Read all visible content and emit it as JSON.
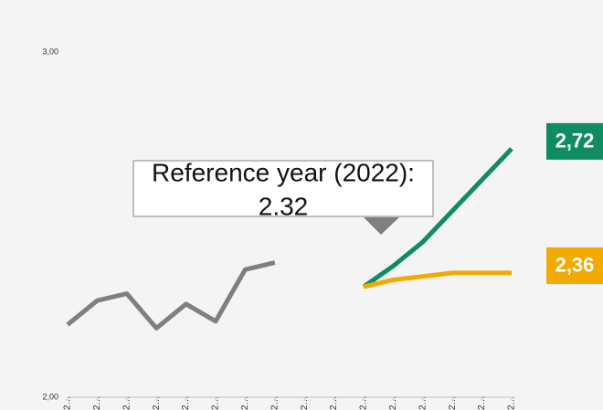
{
  "chart_data": {
    "type": "line",
    "categories": [
      "2…",
      "2…",
      "2…",
      "2…",
      "2…",
      "2…",
      "2…",
      "2…",
      "2…",
      "2…",
      "2…",
      "2…",
      "2…",
      "2…",
      "2…",
      "2…"
    ],
    "series": [
      {
        "color": "#7f7f7f",
        "values": [
          2.21,
          2.28,
          2.3,
          2.2,
          2.27,
          2.22,
          2.37,
          2.39,
          null,
          null,
          null,
          null,
          null,
          null,
          null,
          null
        ]
      },
      {
        "color": "#0f8c64",
        "values": [
          null,
          null,
          null,
          null,
          null,
          null,
          null,
          null,
          null,
          null,
          2.32,
          2.38,
          2.45,
          2.54,
          2.63,
          2.72
        ],
        "value_labels": [
          null,
          null,
          null,
          null,
          null,
          null,
          null,
          null,
          null,
          null,
          null,
          null,
          null,
          null,
          null,
          "2,72"
        ]
      },
      {
        "color": "#f2a900",
        "values": [
          null,
          null,
          null,
          null,
          null,
          null,
          null,
          null,
          null,
          null,
          2.32,
          2.34,
          2.35,
          2.36,
          2.36,
          2.36
        ],
        "value_labels": [
          null,
          null,
          null,
          null,
          null,
          null,
          null,
          null,
          null,
          null,
          null,
          null,
          null,
          null,
          null,
          "2,36"
        ]
      }
    ],
    "annotation": {
      "label": "Reference year (2022):",
      "value": 2.32
    },
    "ylim": [
      2,
      3
    ],
    "yticks": [
      {
        "value": 2,
        "label": "2,00"
      },
      {
        "value": 3,
        "label": "3,00"
      }
    ],
    "grid": false
  }
}
